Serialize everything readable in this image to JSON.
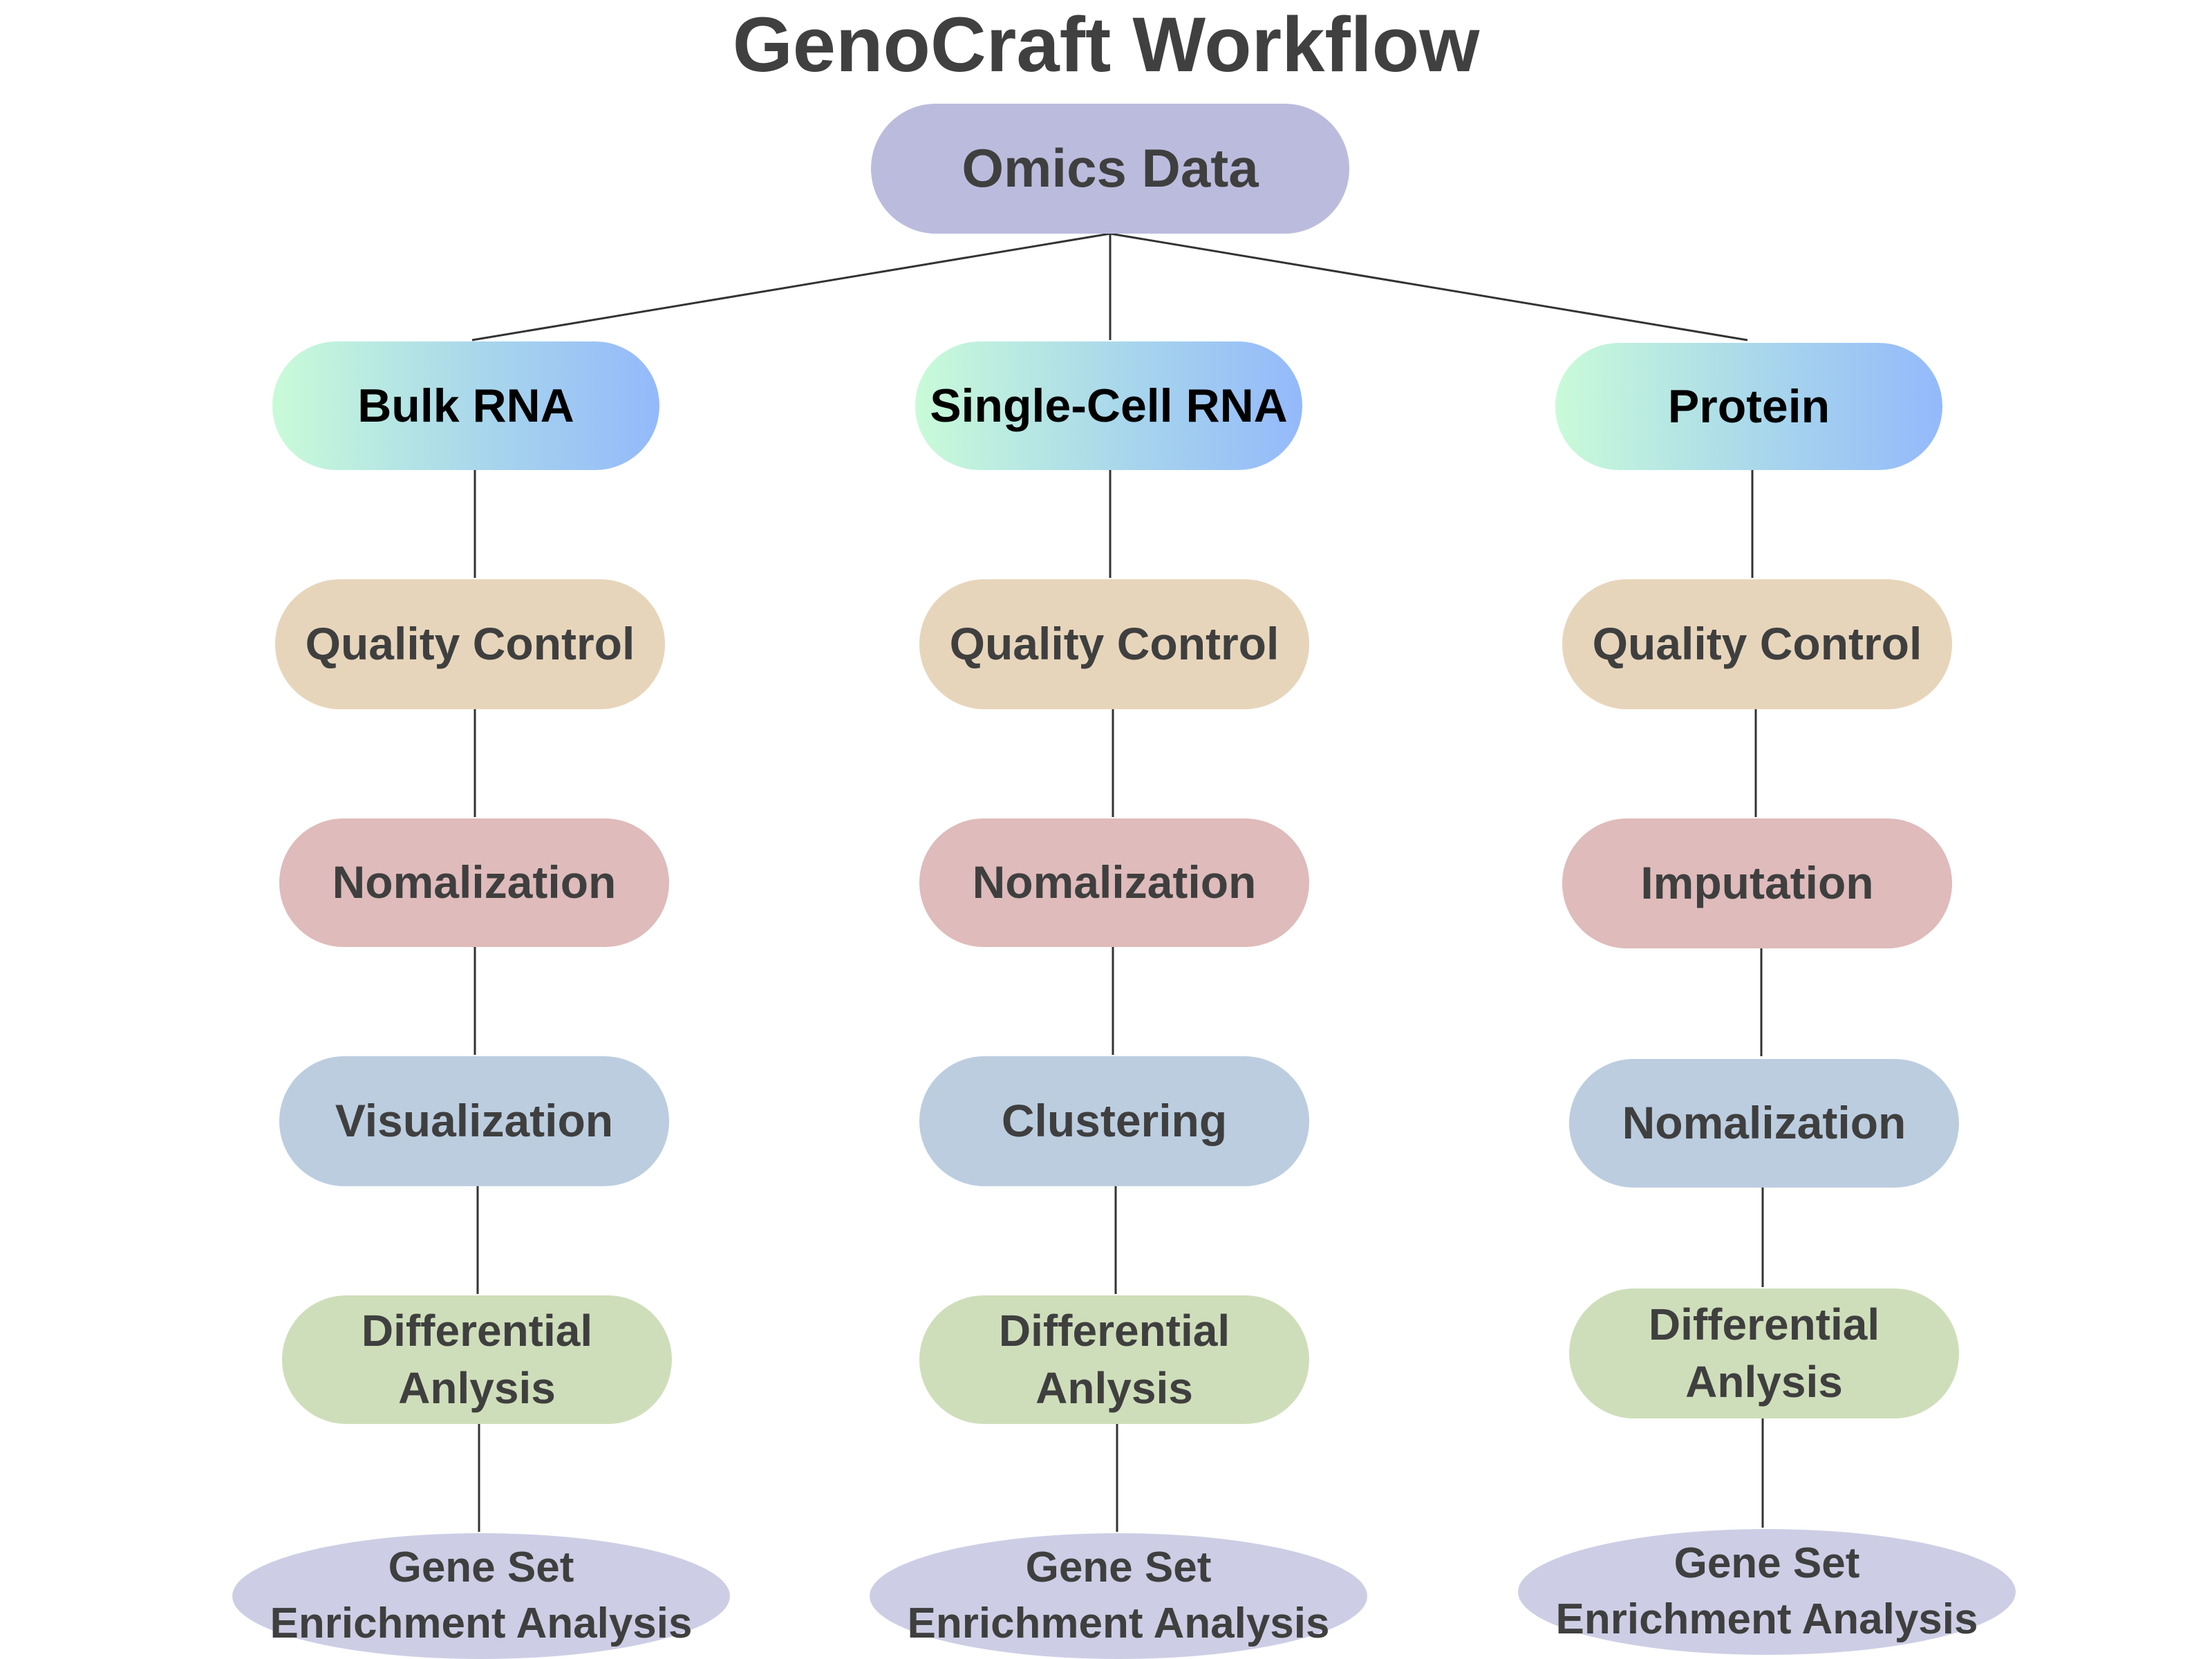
{
  "title": "GenoCraft Workflow",
  "root": {
    "label": "Omics Data"
  },
  "branches": [
    {
      "label": "Bulk RNA",
      "steps": [
        "Quality Control",
        "Nomalization",
        "Visualization",
        "Differential\nAnlysis",
        "Gene Set\nEnrichment Analysis"
      ]
    },
    {
      "label": "Single-Cell RNA",
      "steps": [
        "Quality Control",
        "Nomalization",
        "Clustering",
        "Differential\nAnlysis",
        "Gene Set\nEnrichment Analysis"
      ]
    },
    {
      "label": "Protein",
      "steps": [
        "Quality Control",
        "Imputation",
        "Nomalization",
        "Differential\nAnlysis",
        "Gene Set\nEnrichment Analysis"
      ]
    }
  ],
  "colors": {
    "root": "#bbbcdd",
    "branch_gradient": [
      "#c9fbd8",
      "#94b9fb"
    ],
    "quality_control": "#e7d5bb",
    "step2": "#dfbbbb",
    "step3": "#bccde0",
    "differential_analysis": "#cfdeba",
    "gene_set_enrichment": "#cdcee5",
    "connector": "#333333",
    "text": "#3f3f3f"
  }
}
